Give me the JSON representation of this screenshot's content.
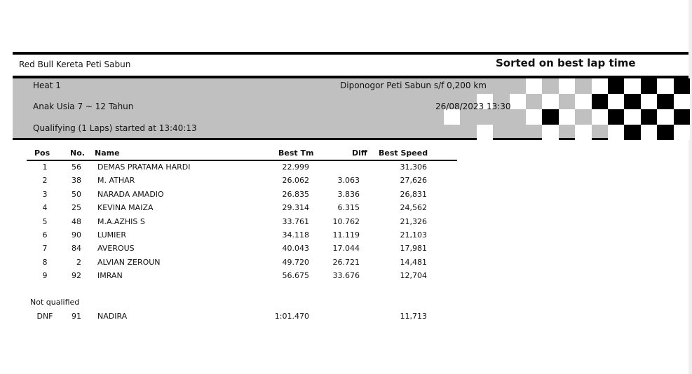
{
  "header": {
    "event_title": "Red Bull Kereta Peti Sabun",
    "sort_label": "Sorted on best lap time"
  },
  "info": {
    "heat": "Heat 1",
    "category": "Anak Usia 7 ~ 12 Tahun",
    "session": "Qualifying (1 Laps) started at 13:40:13",
    "track": "Diponogor Peti Sabun s/f 0,200 km",
    "datetime": "26/08/2023 13:30"
  },
  "colors": {
    "band": "#c0c0c0",
    "flag_dark": "#000000",
    "flag_light": "#ffffff"
  },
  "table": {
    "columns": [
      "Pos",
      "No.",
      "Name",
      "Best Tm",
      "Diff",
      "Best Speed"
    ],
    "rows": [
      {
        "pos": "1",
        "no": "56",
        "name": "DEMAS PRATAMA HARDI",
        "best_tm": "22.999",
        "diff": "",
        "best_speed": "31,306"
      },
      {
        "pos": "2",
        "no": "38",
        "name": "M. ATHAR",
        "best_tm": "26.062",
        "diff": "3.063",
        "best_speed": "27,626"
      },
      {
        "pos": "3",
        "no": "50",
        "name": "NARADA AMADIO",
        "best_tm": "26.835",
        "diff": "3.836",
        "best_speed": "26,831"
      },
      {
        "pos": "4",
        "no": "25",
        "name": "KEVINA MAIZA",
        "best_tm": "29.314",
        "diff": "6.315",
        "best_speed": "24,562"
      },
      {
        "pos": "5",
        "no": "48",
        "name": "M.A.AZHIS S",
        "best_tm": "33.761",
        "diff": "10.762",
        "best_speed": "21,326"
      },
      {
        "pos": "6",
        "no": "90",
        "name": "LUMIER",
        "best_tm": "34.118",
        "diff": "11.119",
        "best_speed": "21,103"
      },
      {
        "pos": "7",
        "no": "84",
        "name": "AVEROUS",
        "best_tm": "40.043",
        "diff": "17.044",
        "best_speed": "17,981"
      },
      {
        "pos": "8",
        "no": "2",
        "name": "ALVIAN ZEROUN",
        "best_tm": "49.720",
        "diff": "26.721",
        "best_speed": "14,481"
      },
      {
        "pos": "9",
        "no": "92",
        "name": "IMRAN",
        "best_tm": "56.675",
        "diff": "33.676",
        "best_speed": "12,704"
      }
    ],
    "not_qualified_label": "Not qualified",
    "not_qualified": [
      {
        "pos": "DNF",
        "no": "91",
        "name": "NADIRA",
        "best_tm": "1:01.470",
        "diff": "",
        "best_speed": "11,713"
      }
    ]
  }
}
